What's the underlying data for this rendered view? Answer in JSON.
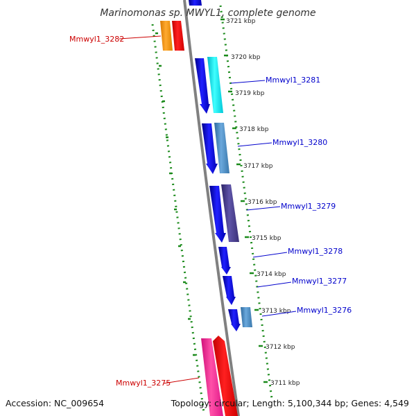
{
  "title": "Marinomonas sp. MWYL1, complete genome",
  "footer": {
    "accession": "Accession: NC_009654",
    "topology": "Topology: circular; Length: 5,100,344 bp; Genes: 4,549"
  },
  "ticks": [
    "3721 kbp",
    "3720 kbp",
    "3719 kbp",
    "3718 kbp",
    "3717 kbp",
    "3716 kbp",
    "3715 kbp",
    "3714 kbp",
    "3713 kbp",
    "3712 kbp",
    "3711 kbp"
  ],
  "gene_labels": {
    "g3282": "Mmwyl1_3282",
    "g3281": "Mmwyl1_3281",
    "g3280": "Mmwyl1_3280",
    "g3279": "Mmwyl1_3279",
    "g3278": "Mmwyl1_3278",
    "g3277": "Mmwyl1_3277",
    "g3276": "Mmwyl1_3276",
    "g3275": "Mmwyl1_3275"
  },
  "colors": {
    "backbone": "#808080",
    "dotted_track": "#1a8a1a",
    "label_forward": "#cc0000",
    "label_reverse": "#0000cc",
    "cds_blue": "#0a0ae6",
    "orange": "#f59a1a",
    "red": "#ee0000",
    "cyan": "#10e8f0",
    "steelblue": "#4a8cc4",
    "slate": "#4a3f8f",
    "pink": "#f01890"
  }
}
